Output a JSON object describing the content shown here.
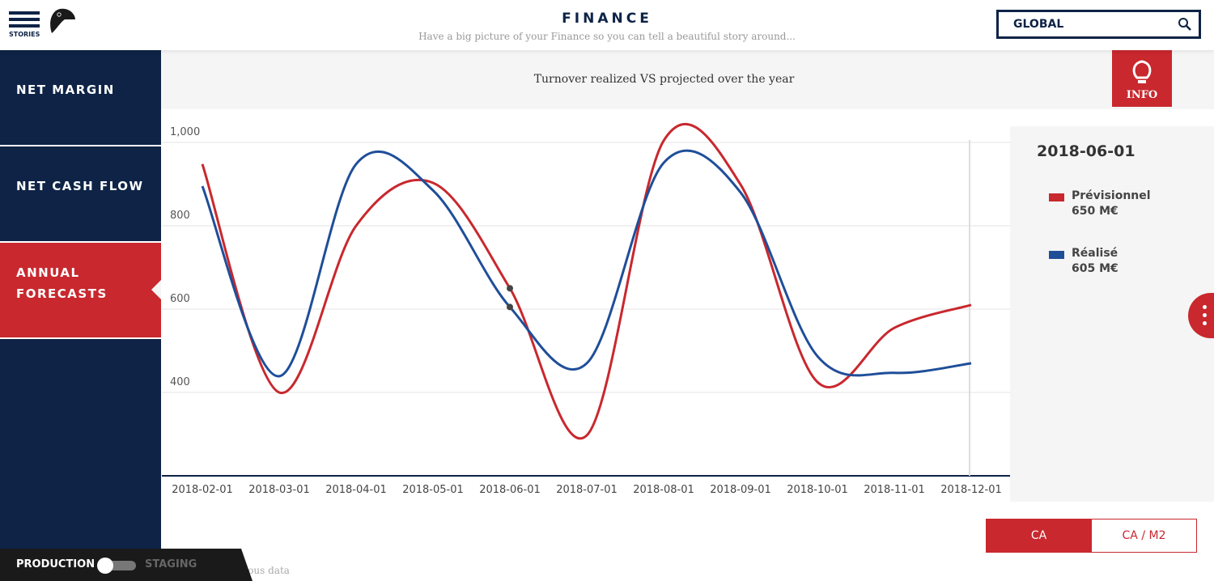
{
  "header": {
    "menu_label": "STORIES",
    "title": "FINANCE",
    "subtitle": "Have a big picture of your Finance so you can tell a beautiful story around...",
    "search_value": "GLOBAL"
  },
  "sidebar": {
    "items": [
      {
        "label": "NET MARGIN"
      },
      {
        "label": "NET CASH FLOW"
      },
      {
        "label": "ANNUAL FORECASTS",
        "active": true
      }
    ]
  },
  "chart_title": "Turnover realized VS projected over the year",
  "info_label": "INFO",
  "tooltip": {
    "date": "2018-06-01",
    "items": [
      {
        "name": "Prévisionnel",
        "value": "650 M€"
      },
      {
        "name": "Réalisé",
        "value": "605 M€"
      }
    ]
  },
  "toggle": {
    "ca": "CA",
    "ca_m2": "CA / M2"
  },
  "footer": {
    "production": "PRODUCTION",
    "staging": "STAGING",
    "note": "Fictitious data"
  },
  "colors": {
    "red": "#c8282e",
    "blue": "#1f4e99",
    "navy": "#0e2346"
  },
  "chart_data": {
    "type": "line",
    "title": "Turnover realized VS projected over the year",
    "x": [
      "2018-02-01",
      "2018-03-01",
      "2018-04-01",
      "2018-05-01",
      "2018-06-01",
      "2018-07-01",
      "2018-08-01",
      "2018-09-01",
      "2018-10-01",
      "2018-11-01",
      "2018-12-01"
    ],
    "yticks": [
      "400",
      "600",
      "800",
      "1,000"
    ],
    "ytick_values": [
      400,
      600,
      800,
      1000
    ],
    "ylim": [
      200,
      1000
    ],
    "highlight": "2018-06-01",
    "series": [
      {
        "name": "Prévisionnel",
        "color": "#c8282e",
        "values": [
          948,
          400,
          800,
          903,
          650,
          297,
          1004,
          899,
          425,
          555,
          610
        ]
      },
      {
        "name": "Réalisé",
        "color": "#1f4e99",
        "values": [
          895,
          439,
          948,
          885,
          605,
          470,
          951,
          880,
          487,
          447,
          470
        ]
      }
    ]
  }
}
